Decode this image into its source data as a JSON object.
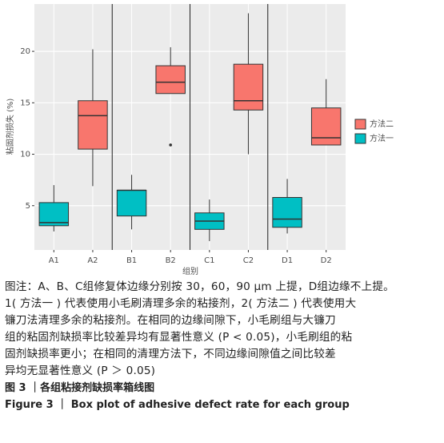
{
  "chart_data": {
    "type": "box",
    "y_label": "粘固剂损失 (%)",
    "x_label": "组别",
    "categories": [
      "A1",
      "A2",
      "B1",
      "B2",
      "C1",
      "C2",
      "D1",
      "D2"
    ],
    "ylim": [
      0.7,
      24.6
    ],
    "yticks": [
      5,
      10,
      15,
      20
    ],
    "grid": true,
    "legend": "right",
    "series": [
      {
        "name": "方法二",
        "color": "#f8766d",
        "values": [
          null,
          {
            "min": 6.9,
            "q1": 10.5,
            "median": 13.75,
            "q3": 15.2,
            "max": 20.2
          },
          null,
          {
            "min": 15.9,
            "q1": 15.9,
            "median": 17.0,
            "q3": 18.6,
            "max": 20.4,
            "outliers": [
              10.9
            ]
          },
          null,
          {
            "min": 10.0,
            "q1": 14.3,
            "median": 15.2,
            "q3": 18.75,
            "max": 23.7
          },
          null,
          {
            "min": 10.9,
            "q1": 10.9,
            "median": 11.6,
            "q3": 14.5,
            "max": 17.3
          }
        ]
      },
      {
        "name": "方法一",
        "color": "#00bfc4",
        "values": [
          {
            "min": 2.5,
            "q1": 3.05,
            "median": 3.36,
            "q3": 5.3,
            "max": 7.0
          },
          null,
          {
            "min": 2.7,
            "q1": 4.0,
            "median": 6.5,
            "q3": 6.5,
            "max": 8.0
          },
          null,
          {
            "min": 1.56,
            "q1": 2.7,
            "median": 3.5,
            "q3": 4.3,
            "max": 5.6
          },
          null,
          {
            "min": 2.3,
            "q1": 2.9,
            "median": 3.7,
            "q3": 5.8,
            "max": 7.6
          },
          null
        ]
      }
    ]
  },
  "caption": {
    "lines": [
      "图注：A、B、C组修复体边缘分别按 30，60，90 μm 上提，D组边缘不上提。",
      "1( 方法一 ) 代表使用小毛刷清理多余的粘接剂，2( 方法二 ) 代表使用大",
      "镰刀法清理多余的粘接剂。在相同的边缘间隙下，小毛刷组与大镰刀",
      "组的粘固剂缺损率比较差异均有显著性意义 (P < 0.05)，小毛刷组的粘",
      "固剂缺损率更小；在相同的清理方法下，不同边缘间隙值之间比较差",
      "异均无显著性意义 (P ＞ 0.05)"
    ],
    "figure_cn": "图 3 ｜各组粘接剂缺损率箱线图",
    "figure_en": "Figure 3 ｜ Box plot of adhesive defect rate for each group"
  }
}
